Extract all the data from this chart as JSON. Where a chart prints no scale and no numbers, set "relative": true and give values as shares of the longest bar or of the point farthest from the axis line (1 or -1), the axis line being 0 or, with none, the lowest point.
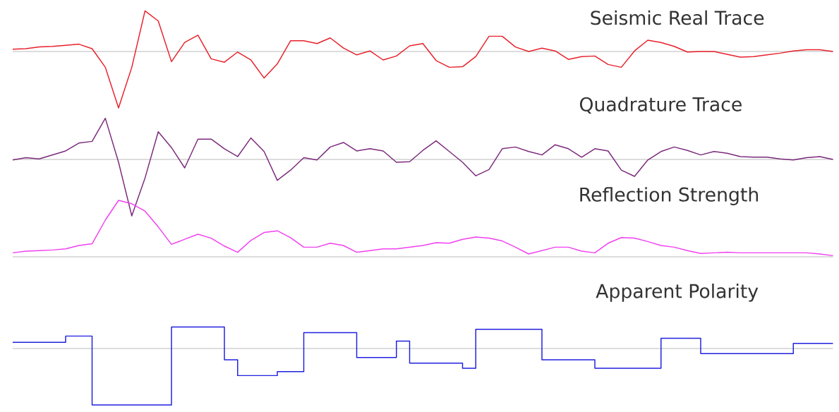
{
  "chart_data": [
    {
      "type": "line",
      "title": "Seismic Real Trace",
      "relative": true,
      "color": "#e8202a",
      "categories": [
        null,
        null,
        null,
        null,
        null,
        null,
        null,
        null,
        null,
        null,
        null,
        null,
        null,
        null,
        null,
        null,
        null,
        null,
        null,
        null,
        null,
        null,
        null,
        null,
        null,
        null,
        null,
        null,
        null,
        null,
        null,
        null,
        null,
        null,
        null,
        null,
        null,
        null,
        null,
        null,
        null,
        null,
        null,
        null,
        null,
        null,
        null,
        null,
        null,
        null,
        null,
        null,
        null,
        null,
        null,
        null,
        null,
        null,
        null,
        null,
        null,
        null,
        null
      ],
      "values": [
        0.04,
        0.05,
        0.08,
        0.09,
        0.11,
        0.13,
        0.05,
        -0.28,
        -1,
        -0.28,
        0.72,
        0.54,
        -0.18,
        0.16,
        0.29,
        -0.13,
        -0.19,
        -0.01,
        -0.15,
        -0.47,
        -0.22,
        0.19,
        0.19,
        0.14,
        0.24,
        0.06,
        -0.06,
        0.01,
        -0.15,
        -0.08,
        0.1,
        0.14,
        -0.16,
        -0.28,
        -0.27,
        -0.09,
        0.27,
        0.27,
        0.08,
        0,
        0.06,
        0.01,
        -0.14,
        -0.09,
        -0.08,
        -0.23,
        -0.28,
        0.01,
        0.2,
        0.16,
        0.09,
        -0.01,
        0,
        0,
        -0.05,
        -0.1,
        -0.09,
        -0.06,
        -0.03,
        0.01,
        0.03,
        0.03,
        0
      ]
    },
    {
      "type": "line",
      "title": "Quadrature Trace",
      "relative": true,
      "color": "#7b2a7b",
      "categories": [
        null,
        null,
        null,
        null,
        null,
        null,
        null,
        null,
        null,
        null,
        null,
        null,
        null,
        null,
        null,
        null,
        null,
        null,
        null,
        null,
        null,
        null,
        null,
        null,
        null,
        null,
        null,
        null,
        null,
        null,
        null,
        null,
        null,
        null,
        null,
        null,
        null,
        null,
        null,
        null,
        null,
        null,
        null,
        null,
        null,
        null,
        null,
        null,
        null,
        null,
        null,
        null,
        null,
        null,
        null,
        null,
        null,
        null,
        null,
        null,
        null,
        null,
        null
      ],
      "values": [
        -0.01,
        0.03,
        0.01,
        0.08,
        0.15,
        0.29,
        0.32,
        0.73,
        -0.05,
        -1,
        -0.33,
        0.49,
        0.21,
        -0.15,
        0.36,
        0.36,
        0.19,
        0.05,
        0.38,
        0.14,
        -0.37,
        -0.19,
        0.03,
        -0.01,
        0.22,
        0.3,
        0.15,
        0.19,
        0.15,
        -0.05,
        -0.04,
        0.16,
        0.33,
        0.14,
        -0.05,
        -0.29,
        -0.18,
        0.19,
        0.22,
        0.14,
        0.08,
        0.26,
        0.19,
        0.04,
        0.19,
        0.15,
        -0.19,
        -0.3,
        -0.01,
        0.14,
        0.22,
        0.16,
        0.08,
        0.14,
        0.11,
        0.05,
        0.04,
        0.04,
        0.01,
        -0.01,
        0.03,
        0.05,
        0
      ]
    },
    {
      "type": "line",
      "title": "Reflection Strength",
      "relative": true,
      "color": "#f040f0",
      "categories": [
        null,
        null,
        null,
        null,
        null,
        null,
        null,
        null,
        null,
        null,
        null,
        null,
        null,
        null,
        null,
        null,
        null,
        null,
        null,
        null,
        null,
        null,
        null,
        null,
        null,
        null,
        null,
        null,
        null,
        null,
        null,
        null,
        null,
        null,
        null,
        null,
        null,
        null,
        null,
        null,
        null,
        null,
        null,
        null,
        null,
        null,
        null,
        null,
        null,
        null,
        null,
        null,
        null,
        null,
        null,
        null,
        null,
        null,
        null,
        null,
        null,
        null,
        null
      ],
      "values": [
        0.07,
        0.1,
        0.11,
        0.12,
        0.14,
        0.2,
        0.23,
        0.65,
        1,
        0.94,
        0.81,
        0.53,
        0.22,
        0.31,
        0.4,
        0.33,
        0.19,
        0.08,
        0.29,
        0.43,
        0.46,
        0.34,
        0.17,
        0.17,
        0.24,
        0.2,
        0.08,
        0.11,
        0.14,
        0.14,
        0.17,
        0.2,
        0.25,
        0.24,
        0.31,
        0.35,
        0.33,
        0.28,
        0.17,
        0.05,
        0.11,
        0.17,
        0.17,
        0.1,
        0.07,
        0.24,
        0.34,
        0.33,
        0.27,
        0.2,
        0.17,
        0.11,
        0.06,
        0.07,
        0.08,
        0.07,
        0.07,
        0.07,
        0.07,
        0.07,
        0.07,
        0.05,
        0.02
      ]
    },
    {
      "type": "step",
      "title": "Apparent Polarity",
      "relative": true,
      "color": "#2020e0",
      "categories": [
        null,
        null,
        null,
        null,
        null,
        null,
        null,
        null,
        null,
        null,
        null,
        null,
        null,
        null,
        null,
        null,
        null,
        null,
        null,
        null,
        null,
        null,
        null,
        null,
        null,
        null,
        null,
        null,
        null,
        null,
        null,
        null,
        null,
        null,
        null,
        null,
        null,
        null,
        null,
        null,
        null,
        null,
        null,
        null,
        null,
        null,
        null,
        null,
        null,
        null,
        null,
        null,
        null,
        null,
        null,
        null,
        null,
        null,
        null,
        null,
        null,
        null,
        null
      ],
      "values": [
        0.11,
        0.11,
        0.11,
        0.11,
        0.22,
        0.22,
        -1,
        -1,
        -1,
        -1,
        -1,
        -1,
        0.38,
        0.38,
        0.38,
        0.38,
        -0.2,
        -0.48,
        -0.48,
        -0.48,
        -0.41,
        -0.41,
        0.28,
        0.28,
        0.28,
        0.28,
        -0.16,
        -0.16,
        -0.16,
        0.13,
        -0.26,
        -0.26,
        -0.26,
        -0.26,
        -0.35,
        0.34,
        0.34,
        0.34,
        0.34,
        0.34,
        -0.2,
        -0.2,
        -0.2,
        -0.2,
        -0.35,
        -0.35,
        -0.35,
        -0.35,
        -0.35,
        0.18,
        0.18,
        0.18,
        -0.09,
        -0.09,
        -0.09,
        -0.09,
        -0.09,
        -0.09,
        -0.09,
        0.09,
        0.09,
        0.09,
        0.09
      ]
    }
  ]
}
